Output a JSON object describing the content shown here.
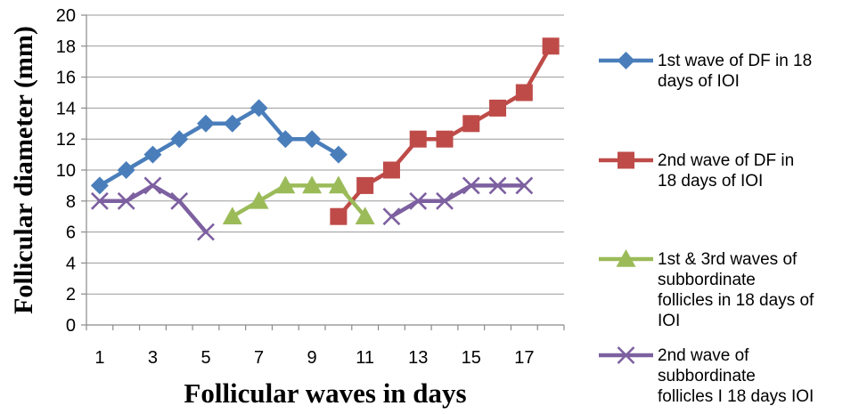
{
  "chart_data": {
    "type": "line",
    "title": "",
    "xlabel": "Follicular waves in days",
    "ylabel": "Follicular diameter (mm)",
    "ylim": [
      0,
      20
    ],
    "xlim": [
      0.5,
      18.5
    ],
    "x_tick_labels": [
      "1",
      "3",
      "5",
      "7",
      "9",
      "11",
      "13",
      "15",
      "17"
    ],
    "y_tick_labels": [
      "0",
      "2",
      "4",
      "6",
      "8",
      "10",
      "12",
      "14",
      "16",
      "18",
      "20"
    ],
    "grid": "horizontal",
    "legend_position": "right",
    "series": [
      {
        "name": "1st wave of DF in 18 days of IOI",
        "legend_lines": [
          "1st wave of DF in 18",
          "days of IOI"
        ],
        "color": "#4A7EBB",
        "marker": "diamond",
        "x": [
          1,
          2,
          3,
          4,
          5,
          6,
          7,
          8,
          9,
          10
        ],
        "values": [
          9,
          10,
          11,
          12,
          13,
          13,
          14,
          12,
          12,
          11
        ]
      },
      {
        "name": "2nd wave of DF in 18 days of IOI",
        "legend_lines": [
          "2nd wave of DF in",
          "18 days of IOI"
        ],
        "color": "#BE4B48",
        "marker": "square",
        "x": [
          10,
          11,
          12,
          13,
          14,
          15,
          16,
          17,
          18
        ],
        "values": [
          7,
          9,
          10,
          12,
          12,
          13,
          14,
          15,
          18
        ]
      },
      {
        "name": "1st & 3rd waves of subbordinate follicles in 18 days of IOI",
        "legend_lines": [
          "1st & 3rd waves of",
          "subbordinate",
          "follicles in 18 days of",
          "IOI"
        ],
        "color": "#9BBB59",
        "marker": "triangle",
        "x": [
          6,
          7,
          8,
          9,
          10,
          11
        ],
        "values": [
          7,
          8,
          9,
          9,
          9,
          7
        ]
      },
      {
        "name": "2nd wave of subbordinate follicles I 18 days IOI",
        "legend_lines": [
          "2nd wave of",
          "subbordinate",
          "follicles I 18 days IOI"
        ],
        "color": "#7D60A0",
        "marker": "x",
        "segments": [
          {
            "x": [
              1,
              2,
              3,
              4,
              5
            ],
            "values": [
              8,
              8,
              9,
              8,
              6
            ]
          },
          {
            "x": [
              12,
              13,
              14,
              15,
              16,
              17
            ],
            "values": [
              7,
              8,
              8,
              9,
              9,
              9
            ]
          }
        ]
      }
    ]
  }
}
